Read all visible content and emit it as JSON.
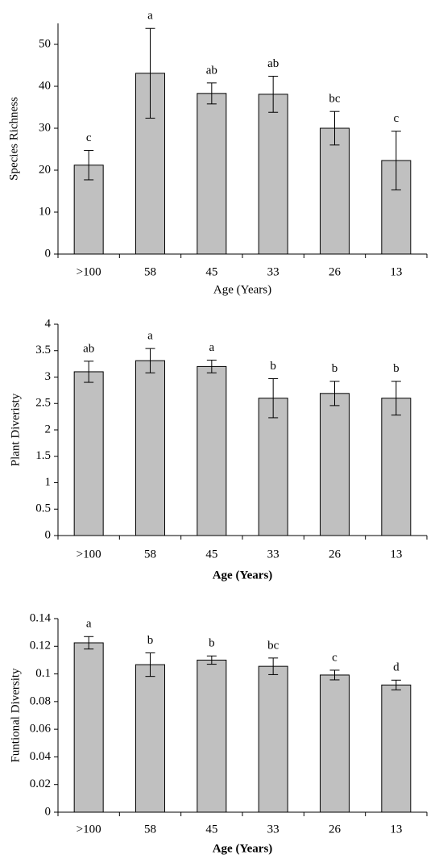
{
  "chart_data": [
    {
      "type": "bar",
      "y_label": "Species Richness",
      "x_label": "Age (Years)",
      "categories": [
        ">100",
        "58",
        "45",
        "33",
        "26",
        "13"
      ],
      "values": [
        21.2,
        43.1,
        38.3,
        38.1,
        30,
        22.3
      ],
      "errors": [
        3.5,
        10.7,
        2.5,
        4.3,
        4,
        7
      ],
      "annotations": [
        "c",
        "a",
        "ab",
        "ab",
        "bc",
        "c"
      ],
      "ylim": [
        0,
        55
      ],
      "yticks": [
        0,
        10,
        20,
        30,
        40,
        50
      ],
      "color": "#c0c0c0"
    },
    {
      "type": "bar",
      "y_label": "Plant Diveristy",
      "x_label": "Age (Years)",
      "categories": [
        ">100",
        "58",
        "45",
        "33",
        "26",
        "13"
      ],
      "values": [
        3.1,
        3.31,
        3.2,
        2.6,
        2.69,
        2.6
      ],
      "errors": [
        0.2,
        0.23,
        0.12,
        0.37,
        0.23,
        0.32
      ],
      "annotations": [
        "ab",
        "a",
        "a",
        "b",
        "b",
        "b"
      ],
      "ylim": [
        0,
        4
      ],
      "yticks": [
        0,
        0.5,
        1,
        1.5,
        2,
        2.5,
        3,
        3.5,
        4
      ],
      "color": "#c0c0c0"
    },
    {
      "type": "bar",
      "y_label": "Funtional Diversity",
      "x_label": "Age (Years)",
      "categories": [
        ">100",
        "58",
        "45",
        "33",
        "26",
        "13"
      ],
      "values": [
        0.1225,
        0.1067,
        0.11,
        0.1055,
        0.0992,
        0.092
      ],
      "errors": [
        0.0045,
        0.0085,
        0.003,
        0.006,
        0.0035,
        0.0035
      ],
      "annotations": [
        "a",
        "b",
        "b",
        "bc",
        "c",
        "d"
      ],
      "ylim": [
        0,
        0.14
      ],
      "yticks": [
        0,
        0.02,
        0.04,
        0.06,
        0.08,
        0.1,
        0.12,
        0.14
      ],
      "color": "#c0c0c0"
    }
  ]
}
